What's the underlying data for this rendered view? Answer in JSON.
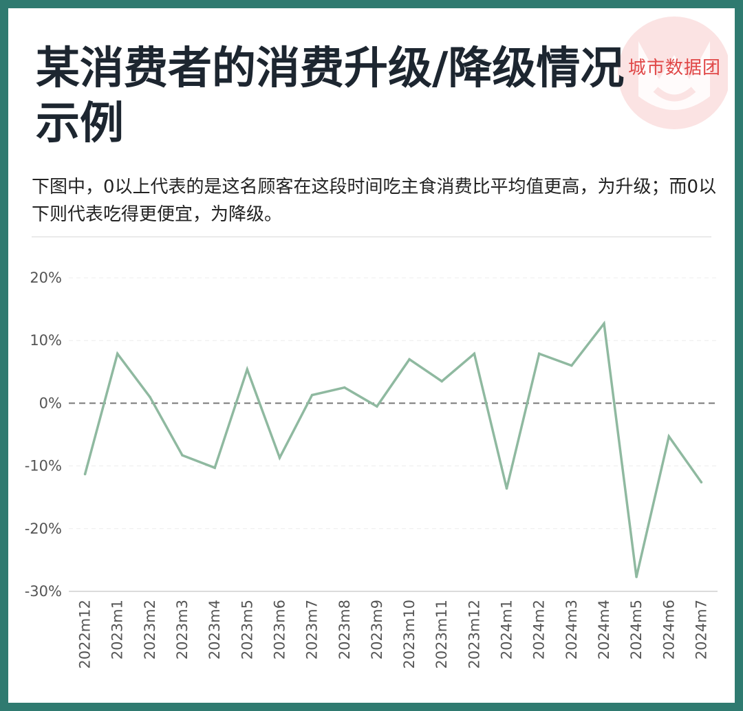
{
  "header": {
    "title": "某消费者的消费升级/降级情况示例",
    "description": "下图中，0以上代表的是这名顾客在这段时间吃主食消费比平均值更高，为升级；而0以下则代表吃得更便宜，为降级。",
    "logo_text": "城市数据团"
  },
  "colors": {
    "frame": "#2f7a70",
    "line": "#8fb9a0",
    "zero_line": "#777777",
    "logo": "#e04848"
  },
  "chart_data": {
    "type": "line",
    "title": "",
    "xlabel": "",
    "ylabel": "",
    "ylim": [
      -30,
      20
    ],
    "y_ticks": [
      "20%",
      "10%",
      "0%",
      "-10%",
      "-20%",
      "-30%"
    ],
    "y_tick_values": [
      20,
      10,
      0,
      -10,
      -20,
      -30
    ],
    "grid": true,
    "zero_reference": "dashed",
    "categories": [
      "2022m12",
      "2023m1",
      "2023m2",
      "2023m3",
      "2023m4",
      "2023m5",
      "2023m6",
      "2023m7",
      "2023m8",
      "2023m9",
      "2023m10",
      "2023m11",
      "2023m12",
      "2024m1",
      "2024m2",
      "2024m3",
      "2024m4",
      "2024m5",
      "2024m6",
      "2024m7"
    ],
    "series": [
      {
        "values": [
          -11.3,
          7.9,
          1.0,
          -8.3,
          -10.3,
          5.4,
          -8.7,
          1.3,
          2.5,
          -0.5,
          7.0,
          3.5,
          7.9,
          -13.6,
          7.9,
          6.0,
          12.7,
          -27.7,
          -5.3,
          -12.6
        ]
      }
    ]
  }
}
